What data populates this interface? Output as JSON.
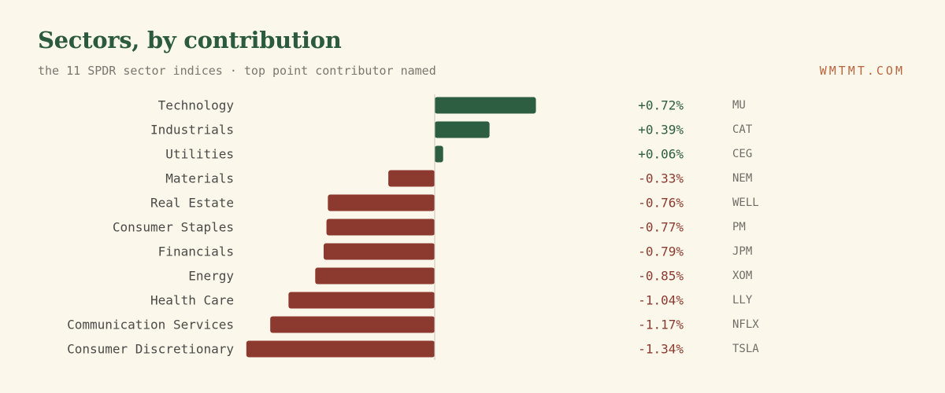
{
  "header": {
    "title": "Sectors, by contribution",
    "subtitle": "the 11 SPDR sector indices · top point contributor named",
    "brand": "WMTMT.COM"
  },
  "colors": {
    "background": "#fbf7ea",
    "positive": "#2e5e42",
    "negative": "#8c3a2f",
    "title": "#2c5a3f",
    "brand": "#b8653f",
    "label": "#4a4a48",
    "ticker": "#6f6d68",
    "zero_line": "#c9c5b8"
  },
  "chart_data": {
    "type": "bar",
    "orientation": "horizontal",
    "categories": [
      "Technology",
      "Industrials",
      "Utilities",
      "Materials",
      "Real Estate",
      "Consumer Staples",
      "Financials",
      "Energy",
      "Health Care",
      "Communication Services",
      "Consumer Discretionary"
    ],
    "values": [
      0.72,
      0.39,
      0.06,
      -0.33,
      -0.76,
      -0.77,
      -0.79,
      -0.85,
      -1.04,
      -1.17,
      -1.34
    ],
    "value_labels": [
      "+0.72%",
      "+0.39%",
      "+0.06%",
      "-0.33%",
      "-0.76%",
      "-0.77%",
      "-0.79%",
      "-0.85%",
      "-1.04%",
      "-1.17%",
      "-1.34%"
    ],
    "top_contributors": [
      "MU",
      "CAT",
      "CEG",
      "NEM",
      "WELL",
      "PM",
      "JPM",
      "XOM",
      "LLY",
      "NFLX",
      "TSLA"
    ],
    "xlim": [
      -1.34,
      0.72
    ],
    "grid": false,
    "legend": "none"
  }
}
